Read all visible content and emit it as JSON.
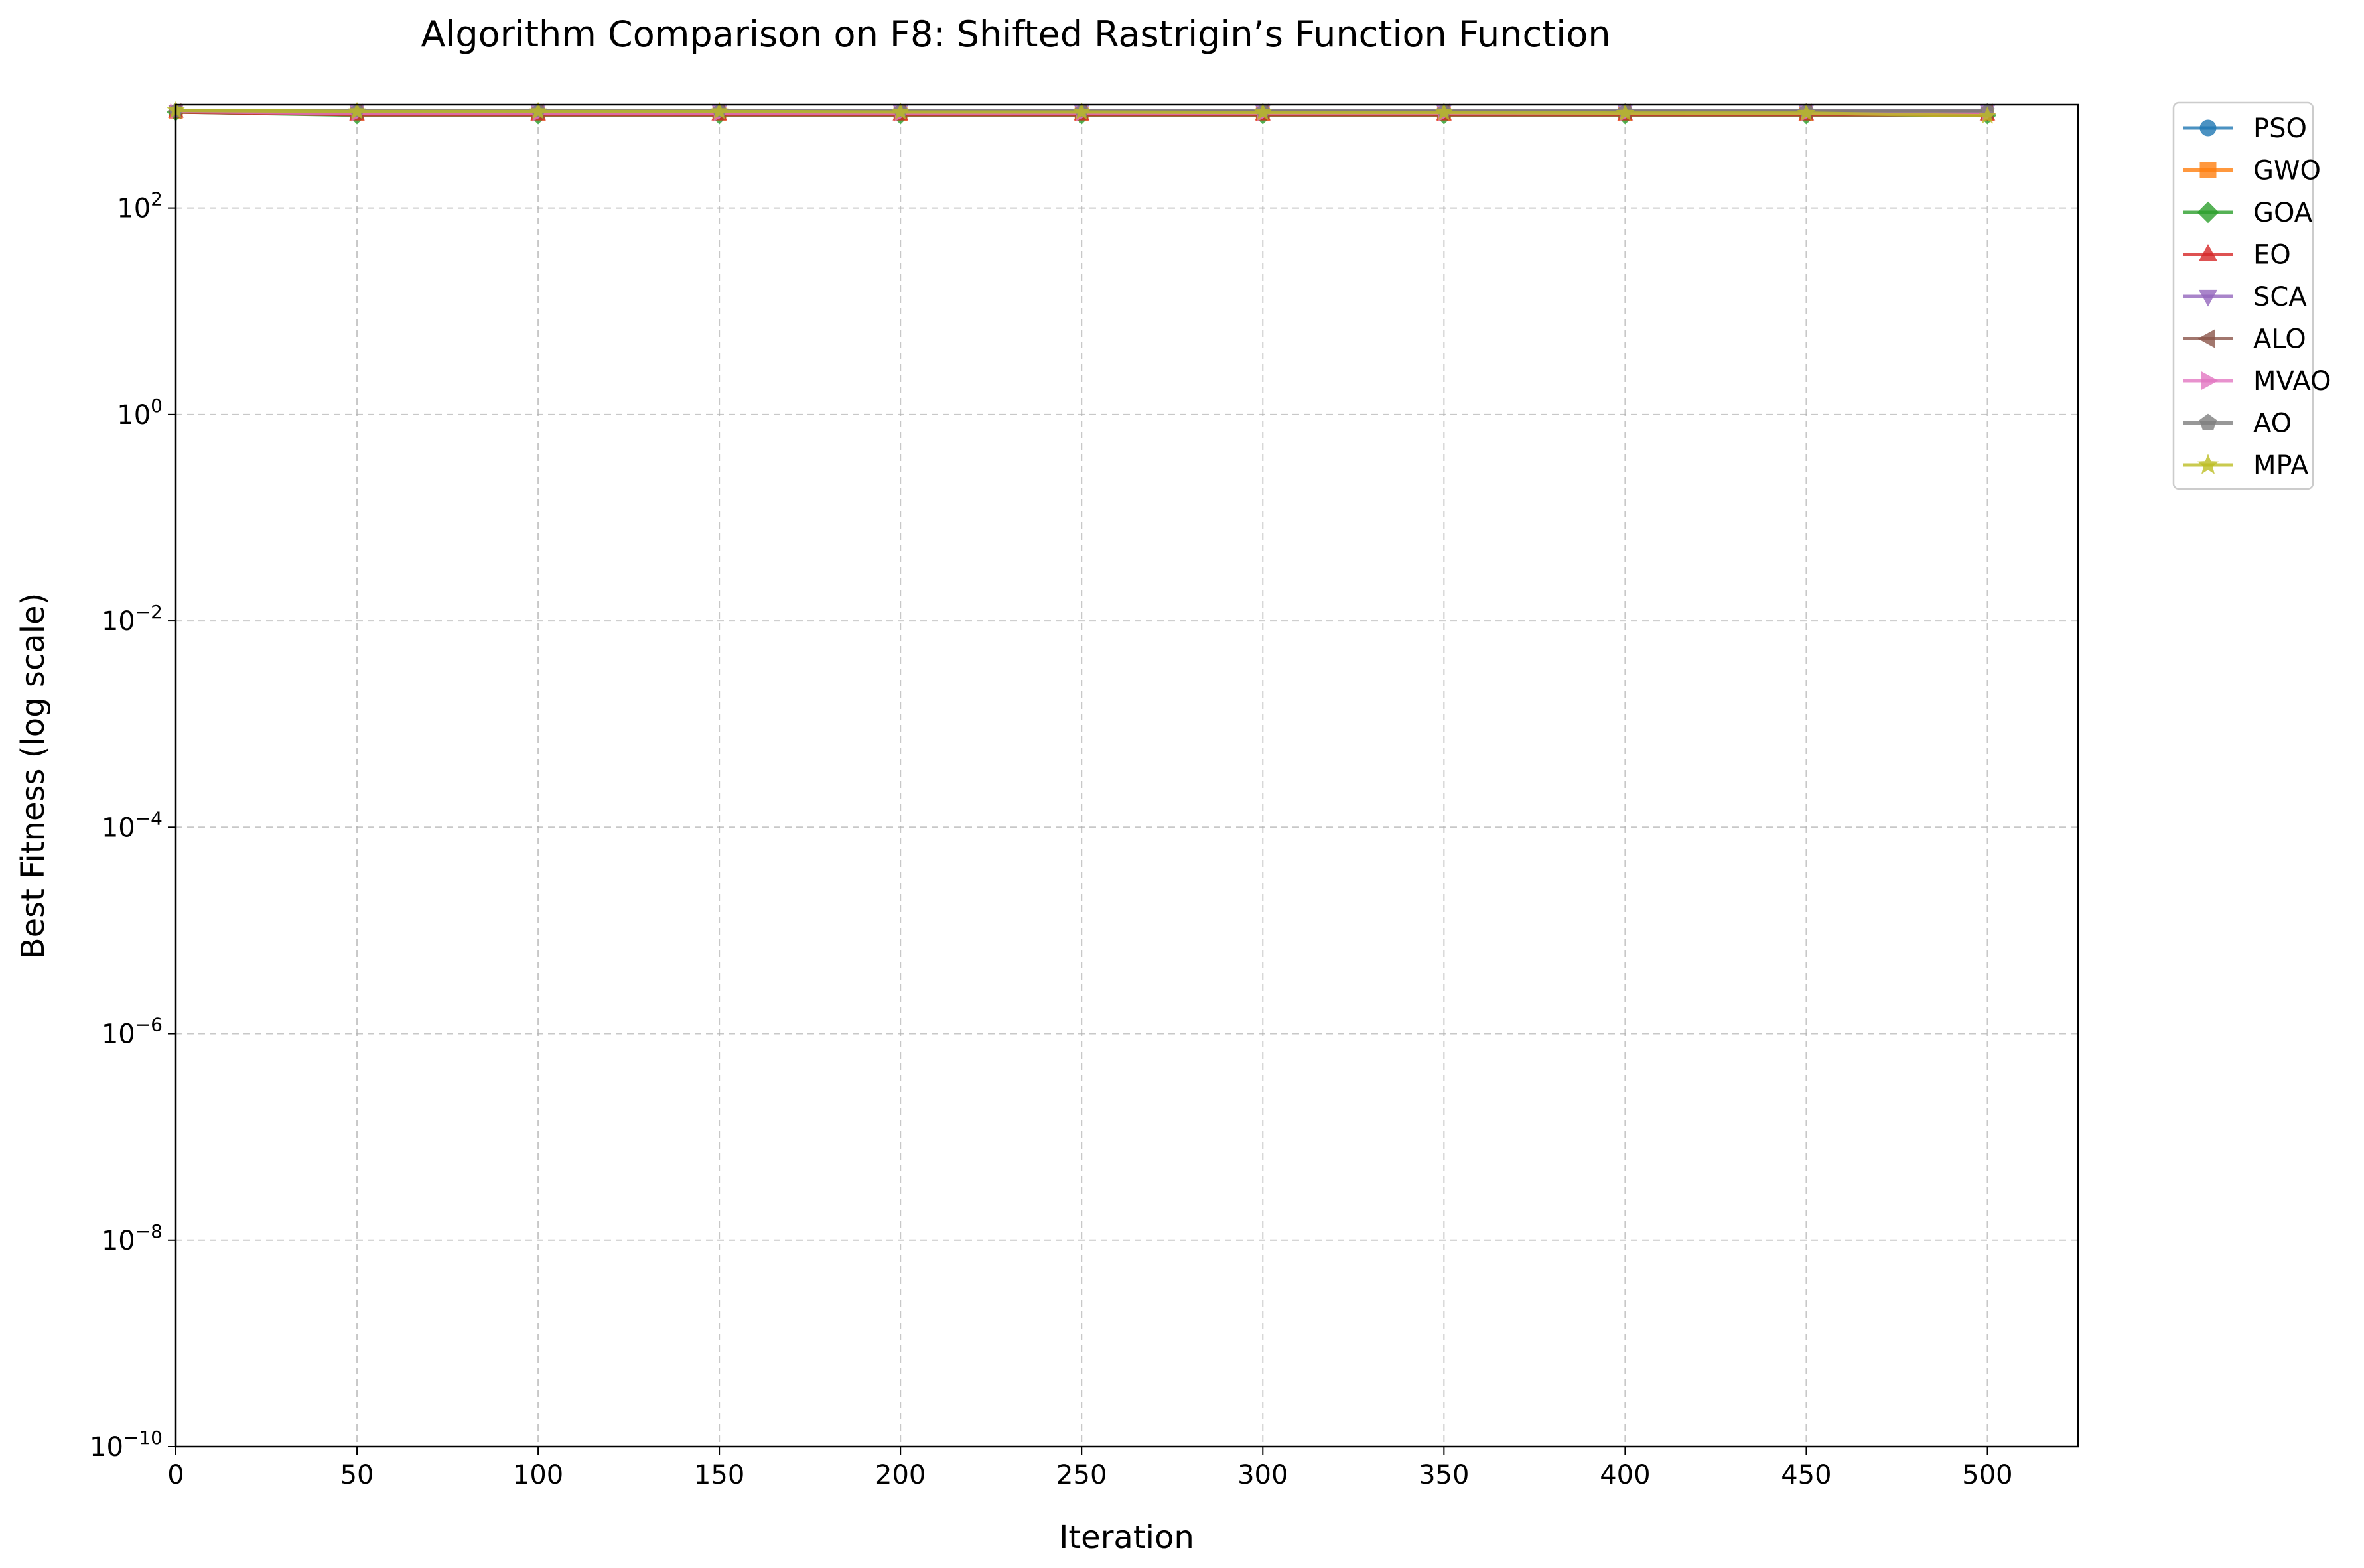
{
  "chart_data": {
    "type": "line",
    "title": "Algorithm Comparison on F8: Shifted Rastrigin’s Function Function",
    "xlabel": "Iteration",
    "ylabel": "Best Fitness (log scale)",
    "yscale": "log",
    "xlim": [
      0,
      525
    ],
    "ylim": [
      1e-10,
      1000
    ],
    "xticks": [
      0,
      50,
      100,
      150,
      200,
      250,
      300,
      350,
      400,
      450,
      500
    ],
    "xtick_labels": [
      "0",
      "50",
      "100",
      "150",
      "200",
      "250",
      "300",
      "350",
      "400",
      "450",
      "500"
    ],
    "yticks": [
      {
        "value": 1e-10,
        "base": "10",
        "exp": "−10"
      },
      {
        "value": 1e-08,
        "base": "10",
        "exp": "−8"
      },
      {
        "value": 1e-06,
        "base": "10",
        "exp": "−6"
      },
      {
        "value": 0.0001,
        "base": "10",
        "exp": "−4"
      },
      {
        "value": 0.01,
        "base": "10",
        "exp": "−2"
      },
      {
        "value": 1,
        "base": "10",
        "exp": "0"
      },
      {
        "value": 100,
        "base": "10",
        "exp": "2"
      }
    ],
    "grid": true,
    "legend_position": "outside-top-right",
    "x": [
      0,
      50,
      100,
      150,
      200,
      250,
      300,
      350,
      400,
      450,
      500
    ],
    "series": [
      {
        "name": "PSO",
        "color": "#1f77b4",
        "marker": "circle",
        "values": [
          850,
          830,
          830,
          830,
          830,
          830,
          830,
          830,
          830,
          830,
          830
        ]
      },
      {
        "name": "GWO",
        "color": "#ff7f0e",
        "marker": "square",
        "values": [
          850,
          820,
          820,
          820,
          815,
          815,
          815,
          815,
          815,
          815,
          810
        ]
      },
      {
        "name": "GOA",
        "color": "#2ca02c",
        "marker": "diamond",
        "values": [
          850,
          790,
          790,
          790,
          790,
          790,
          790,
          790,
          790,
          790,
          790
        ]
      },
      {
        "name": "EO",
        "color": "#d62728",
        "marker": "triangle-up",
        "values": [
          850,
          800,
          800,
          800,
          800,
          800,
          800,
          800,
          800,
          800,
          800
        ]
      },
      {
        "name": "SCA",
        "color": "#9467bd",
        "marker": "triangle-down",
        "values": [
          880,
          880,
          880,
          880,
          880,
          880,
          880,
          880,
          880,
          880,
          880
        ]
      },
      {
        "name": "ALO",
        "color": "#8c564b",
        "marker": "triangle-left",
        "values": [
          870,
          860,
          860,
          860,
          860,
          860,
          860,
          860,
          860,
          860,
          860
        ]
      },
      {
        "name": "MVAO",
        "color": "#e377c2",
        "marker": "triangle-right",
        "values": [
          860,
          820,
          820,
          820,
          820,
          820,
          820,
          820,
          820,
          820,
          820
        ]
      },
      {
        "name": "AO",
        "color": "#7f7f7f",
        "marker": "pentagon",
        "values": [
          880,
          870,
          870,
          870,
          870,
          870,
          870,
          870,
          870,
          870,
          870
        ]
      },
      {
        "name": "MPA",
        "color": "#bcbd22",
        "marker": "star",
        "values": [
          880,
          860,
          860,
          860,
          850,
          850,
          840,
          840,
          830,
          830,
          780
        ]
      }
    ]
  }
}
